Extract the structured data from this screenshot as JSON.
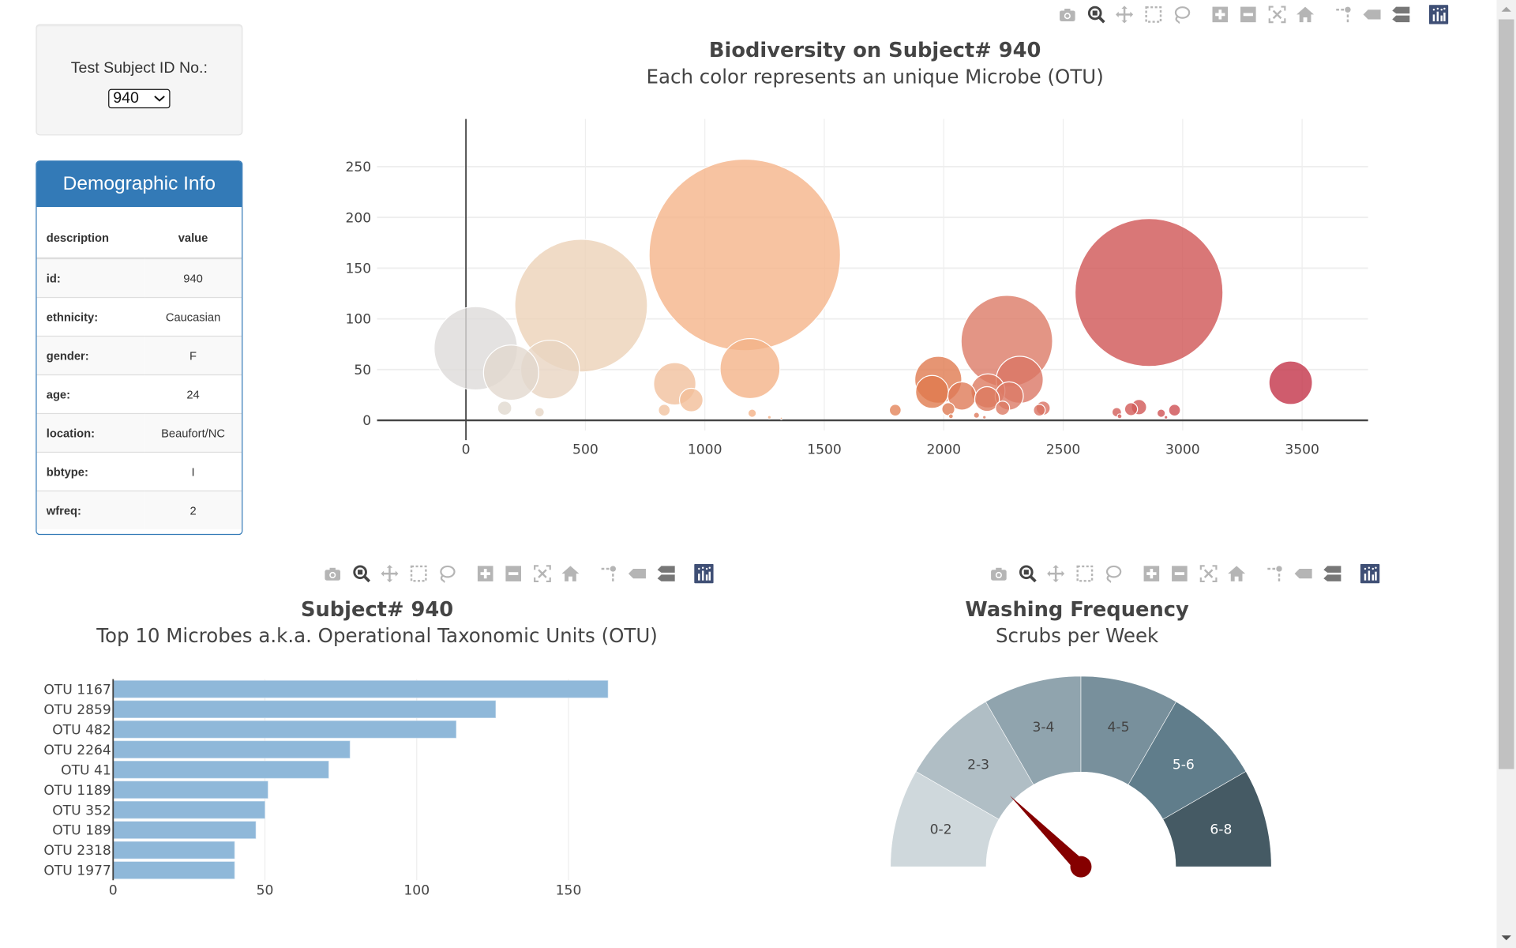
{
  "selector": {
    "label": "Test Subject ID No.:",
    "selected": "940"
  },
  "demographics": {
    "title": "Demographic Info",
    "headers": [
      "description",
      "value"
    ],
    "rows": [
      {
        "key": "id:",
        "value": "940"
      },
      {
        "key": "ethnicity:",
        "value": "Caucasian"
      },
      {
        "key": "gender:",
        "value": "F"
      },
      {
        "key": "age:",
        "value": "24"
      },
      {
        "key": "location:",
        "value": "Beaufort/NC"
      },
      {
        "key": "bbtype:",
        "value": "I"
      },
      {
        "key": "wfreq:",
        "value": "2"
      }
    ]
  },
  "toolbar_icons": [
    "camera-icon",
    "zoom-icon",
    "pan-icon",
    "box-select-icon",
    "lasso-select-icon",
    "zoom-in-icon",
    "zoom-out-icon",
    "autoscale-icon",
    "reset-axes-icon",
    "spike-lines-icon",
    "hover-closest-icon",
    "hover-compare-icon",
    "plotly-logo-icon"
  ],
  "chart_data": [
    {
      "type": "scatter",
      "title": "Biodiversity on Subject# 940",
      "subtitle": "Each color represents an unique Microbe (OTU)",
      "xlim": [
        -372,
        3776
      ],
      "ylim": [
        -10,
        297
      ],
      "xticks": [
        0,
        500,
        1000,
        1500,
        2000,
        2500,
        3000,
        3500
      ],
      "yticks": [
        0,
        50,
        100,
        150,
        200,
        250
      ],
      "grid": true,
      "colorscale": [
        [
          0,
          "#dcdcdc"
        ],
        [
          480,
          "#ecd2b8"
        ],
        [
          1160,
          "#f5b58a"
        ],
        [
          1950,
          "#e07a4e"
        ],
        [
          2270,
          "#dc7a66"
        ],
        [
          2860,
          "#d05555"
        ],
        [
          3450,
          "#c33348"
        ]
      ],
      "points": [
        {
          "x": 1167,
          "y": 163
        },
        {
          "x": 2859,
          "y": 126
        },
        {
          "x": 482,
          "y": 113
        },
        {
          "x": 2264,
          "y": 78
        },
        {
          "x": 41,
          "y": 71
        },
        {
          "x": 1189,
          "y": 51
        },
        {
          "x": 352,
          "y": 50
        },
        {
          "x": 189,
          "y": 47
        },
        {
          "x": 2318,
          "y": 40
        },
        {
          "x": 1977,
          "y": 40
        },
        {
          "x": 3452,
          "y": 37
        },
        {
          "x": 874,
          "y": 36
        },
        {
          "x": 2185,
          "y": 29
        },
        {
          "x": 1951,
          "y": 28
        },
        {
          "x": 2076,
          "y": 24
        },
        {
          "x": 2274,
          "y": 24
        },
        {
          "x": 2181,
          "y": 21
        },
        {
          "x": 943,
          "y": 20
        },
        {
          "x": 2817,
          "y": 13
        },
        {
          "x": 2246,
          "y": 12
        },
        {
          "x": 2416,
          "y": 12
        },
        {
          "x": 162,
          "y": 12
        },
        {
          "x": 2019,
          "y": 11
        },
        {
          "x": 2784,
          "y": 11
        },
        {
          "x": 2400,
          "y": 10
        },
        {
          "x": 1797,
          "y": 10
        },
        {
          "x": 2966,
          "y": 10
        },
        {
          "x": 830,
          "y": 10
        },
        {
          "x": 2724,
          "y": 8
        },
        {
          "x": 308,
          "y": 8
        },
        {
          "x": 2910,
          "y": 7
        },
        {
          "x": 1198,
          "y": 7
        },
        {
          "x": 2137,
          "y": 5
        },
        {
          "x": 2736,
          "y": 4
        },
        {
          "x": 1270,
          "y": 3
        },
        {
          "x": 1320,
          "y": 2
        },
        {
          "x": 2030,
          "y": 4
        },
        {
          "x": 2170,
          "y": 3
        },
        {
          "x": 2930,
          "y": 3
        }
      ]
    },
    {
      "type": "bar",
      "orientation": "horizontal",
      "title": "Subject# 940",
      "subtitle": "Top 10 Microbes a.k.a. Operational Taxonomic Units (OTU)",
      "categories": [
        "OTU 1167",
        "OTU 2859",
        "OTU 482",
        "OTU 2264",
        "OTU 41",
        "OTU 1189",
        "OTU 352",
        "OTU 189",
        "OTU 2318",
        "OTU 1977"
      ],
      "values": [
        163,
        126,
        113,
        78,
        71,
        51,
        50,
        47,
        40,
        40
      ],
      "xlim": [
        0,
        172
      ],
      "xticks": [
        0,
        50,
        100,
        150
      ],
      "color": "#8fb8d9"
    },
    {
      "type": "gauge",
      "title": "Washing Frequency",
      "subtitle": "Scrubs per Week",
      "sections": [
        {
          "label": "0-2",
          "color": "#cfd8dc"
        },
        {
          "label": "2-3",
          "color": "#b0bec5"
        },
        {
          "label": "3-4",
          "color": "#90a4ae"
        },
        {
          "label": "4-5",
          "color": "#78909c"
        },
        {
          "label": "5-6",
          "color": "#607d8b"
        },
        {
          "label": "6-8",
          "color": "#455a64"
        }
      ],
      "value": 2,
      "max": 8,
      "needle_color": "#850000"
    }
  ]
}
